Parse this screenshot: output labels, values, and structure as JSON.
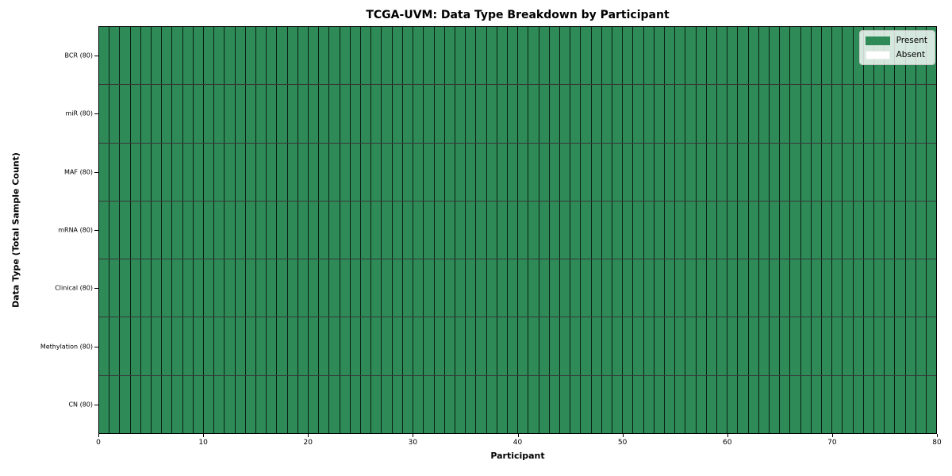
{
  "chart_data": {
    "type": "heatmap",
    "title": "TCGA-UVM: Data Type Breakdown by Participant",
    "xlabel": "Participant",
    "ylabel": "Data Type (Total Sample Count)",
    "xlim": [
      0,
      80
    ],
    "x_ticks": [
      "0",
      "10",
      "20",
      "30",
      "40",
      "50",
      "60",
      "70",
      "80"
    ],
    "n_participants": 80,
    "grid": false,
    "legend_position": "upper right",
    "rows": [
      {
        "label": "BCR (80)",
        "total_samples": 80,
        "present_count": 80,
        "absent_count": 0
      },
      {
        "label": "miR (80)",
        "total_samples": 80,
        "present_count": 80,
        "absent_count": 0
      },
      {
        "label": "MAF (80)",
        "total_samples": 80,
        "present_count": 80,
        "absent_count": 0
      },
      {
        "label": "mRNA (80)",
        "total_samples": 80,
        "present_count": 80,
        "absent_count": 0
      },
      {
        "label": "Clinical (80)",
        "total_samples": 80,
        "present_count": 80,
        "absent_count": 0
      },
      {
        "label": "Methylation (80)",
        "total_samples": 80,
        "present_count": 80,
        "absent_count": 0
      },
      {
        "label": "CN (80)",
        "total_samples": 80,
        "present_count": 80,
        "absent_count": 0
      }
    ],
    "matrix_all_present": true,
    "colors": {
      "present": "#2e8b57",
      "absent": "#ffffff",
      "cell_border": "rgba(0,0,0,0.78)",
      "spine": "#000000"
    },
    "legend": {
      "entries": [
        {
          "label": "Present",
          "color": "#2e8b57"
        },
        {
          "label": "Absent",
          "color": "#ffffff"
        }
      ]
    }
  }
}
